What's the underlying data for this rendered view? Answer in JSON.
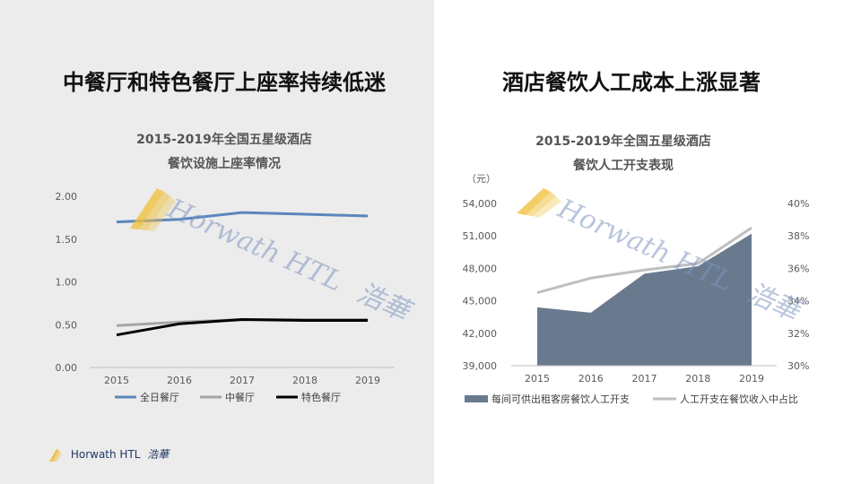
{
  "left_panel": {
    "headline": "中餐厅和特色餐厅上座率持续低迷",
    "title_line1": "2015-2019年全国五星级酒店",
    "title_line2": "餐饮设施上座率情况"
  },
  "right_panel": {
    "headline": "酒店餐饮人工成本上涨显著",
    "title_line1": "2015-2019年全国五星级酒店",
    "title_line2": "餐饮人工开支表现",
    "unit_label": "（元）"
  },
  "watermark": {
    "brand_en": "Horwath HTL",
    "brand_cn": "浩華"
  },
  "footer": {
    "brand_en": "Horwath HTL",
    "brand_cn": "浩華"
  },
  "colors": {
    "all_day": "#5b87bd",
    "chinese": "#a5a5a5",
    "specialty": "#000000",
    "labor_area": "#697a8f",
    "labor_ratio": "#bfbfbf",
    "gold": "#f0c040"
  },
  "chart_data": [
    {
      "type": "line",
      "x": [
        "2015",
        "2016",
        "2017",
        "2018",
        "2019"
      ],
      "ylim": [
        0,
        2.0
      ],
      "yticks": [
        "0.00",
        "0.50",
        "1.00",
        "1.50",
        "2.00"
      ],
      "legend_position": "bottom",
      "grid": false,
      "series": [
        {
          "name": "全日餐厅",
          "values": [
            1.7,
            1.73,
            1.81,
            1.79,
            1.77
          ]
        },
        {
          "name": "中餐厅",
          "values": [
            0.49,
            0.53,
            0.56,
            0.56,
            0.56
          ]
        },
        {
          "name": "特色餐厅",
          "values": [
            0.38,
            0.51,
            0.56,
            0.55,
            0.55
          ]
        }
      ]
    },
    {
      "type": "area",
      "x": [
        "2015",
        "2016",
        "2017",
        "2018",
        "2019"
      ],
      "ylim": [
        39000,
        54000
      ],
      "yticks": [
        "39,000",
        "42,000",
        "45,000",
        "48,000",
        "51,000",
        "54,000"
      ],
      "y2lim": [
        30,
        40
      ],
      "y2ticks": [
        "30%",
        "32%",
        "34%",
        "36%",
        "38%",
        "40%"
      ],
      "legend_position": "bottom",
      "grid": false,
      "series": [
        {
          "name": "每间可供出租客房餐饮人工开支",
          "type": "area",
          "axis": "left",
          "values": [
            44400,
            43900,
            47500,
            48200,
            51200
          ]
        },
        {
          "name": "人工开支在餐饮收入中占比",
          "type": "line",
          "axis": "right",
          "values": [
            34.5,
            35.4,
            35.9,
            36.3,
            38.5
          ]
        }
      ]
    }
  ]
}
